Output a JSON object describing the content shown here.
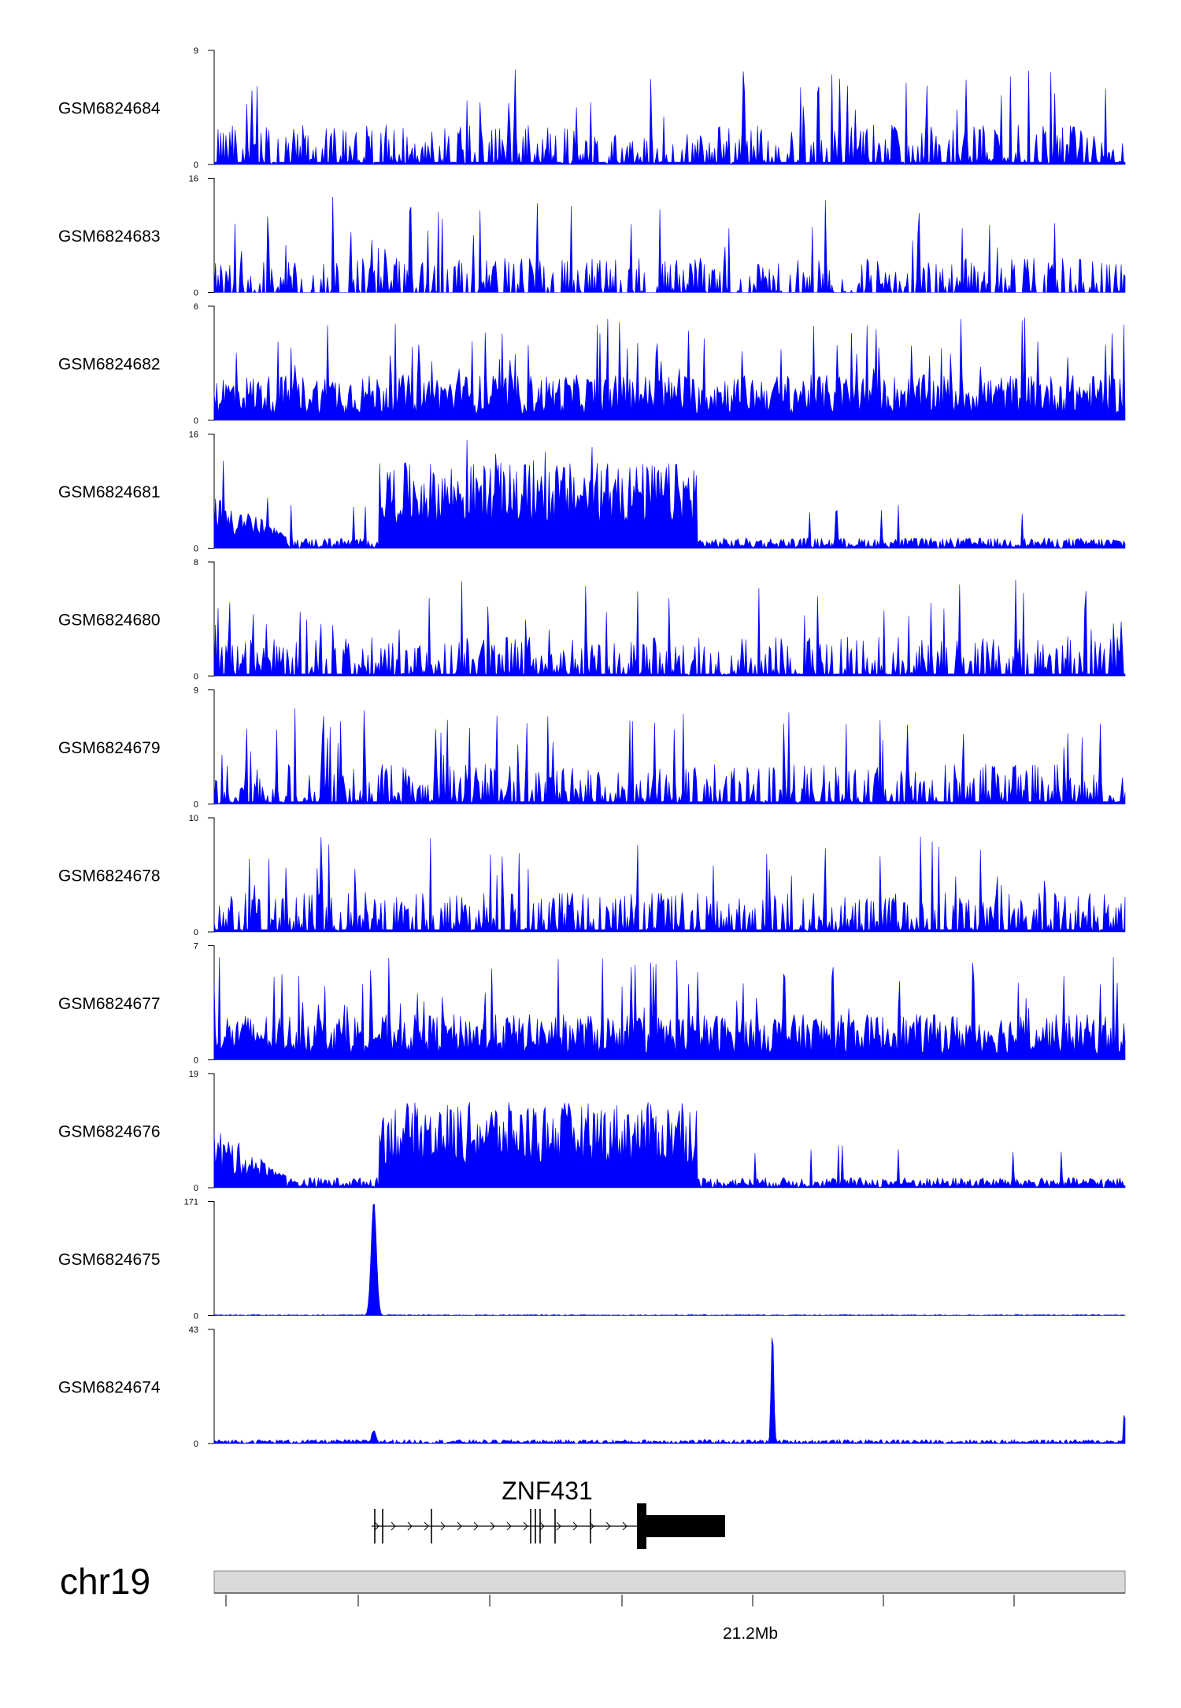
{
  "chart_data": {
    "type": "area",
    "tracks": [
      {
        "sample": "GSM6824684",
        "ymax": 9,
        "ymin": 0,
        "profile": "sparse"
      },
      {
        "sample": "GSM6824683",
        "ymax": 16,
        "ymin": 0,
        "profile": "very-sparse"
      },
      {
        "sample": "GSM6824682",
        "ymax": 6,
        "ymin": 0,
        "profile": "dense"
      },
      {
        "sample": "GSM6824681",
        "ymax": 16,
        "ymin": 0,
        "profile": "enriched-block"
      },
      {
        "sample": "GSM6824680",
        "ymax": 8,
        "ymin": 0,
        "profile": "sparse"
      },
      {
        "sample": "GSM6824679",
        "ymax": 9,
        "ymin": 0,
        "profile": "sparse"
      },
      {
        "sample": "GSM6824678",
        "ymax": 10,
        "ymin": 0,
        "profile": "sparse"
      },
      {
        "sample": "GSM6824677",
        "ymax": 7,
        "ymin": 0,
        "profile": "dense"
      },
      {
        "sample": "GSM6824676",
        "ymax": 19,
        "ymin": 0,
        "profile": "enriched-block"
      },
      {
        "sample": "GSM6824675",
        "ymax": 171,
        "ymin": 0,
        "profile": "single-peak-left"
      },
      {
        "sample": "GSM6824674",
        "ymax": 43,
        "ymin": 0,
        "profile": "single-peak-right"
      }
    ],
    "gene": {
      "name": "ZNF431",
      "strand": "+"
    },
    "chromosome": "chr19",
    "axis_tick_label": "21.2Mb",
    "color": "#0000ff"
  }
}
